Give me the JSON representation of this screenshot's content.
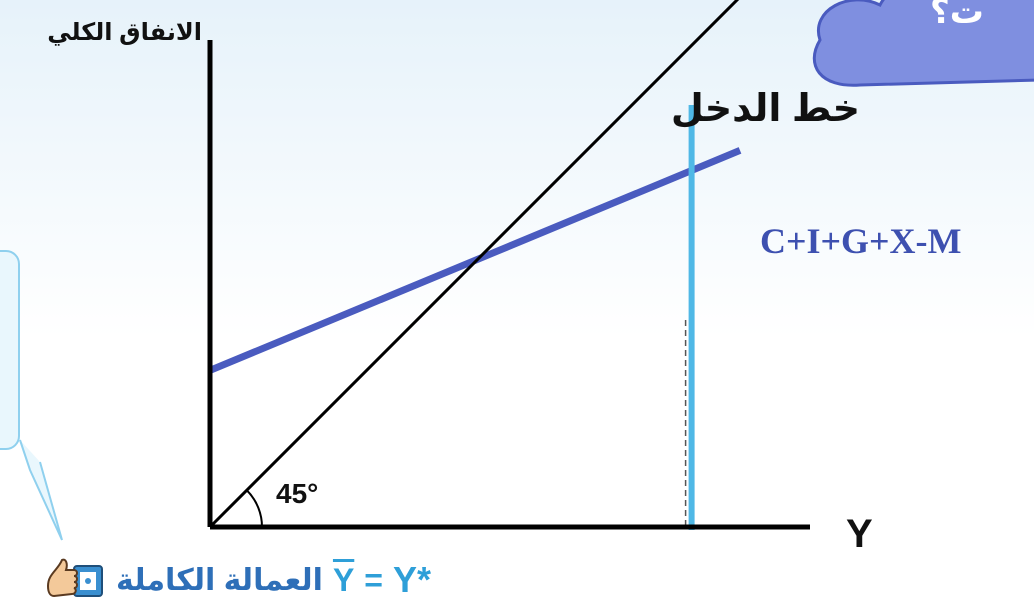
{
  "labels": {
    "y_axis": "الانفاق الكلي",
    "x_axis": "Y",
    "income_line": "خط الدخل",
    "aggregate_expenditure": "C+I+G+X-M",
    "angle": "45°",
    "cloud_text": "ت؟",
    "full_employment": "العمالة الكاملة",
    "y_bar": "Y",
    "equals": "=",
    "y_star": "Y*"
  },
  "colors": {
    "axes": "#000000",
    "income_line": "#000000",
    "aggregate_expenditure": "#4a5bbf",
    "full_employment_line": "#4fb8e6",
    "cloud": "#7f8fe0",
    "caption": "#2e9fd8"
  },
  "chart_data": {
    "type": "line",
    "xlabel": "Y",
    "ylabel": "الانفاق الكلي",
    "series": [
      {
        "name": "خط الدخل",
        "kind": "45-degree line",
        "x": [
          0,
          10
        ],
        "y": [
          0,
          10
        ]
      },
      {
        "name": "C+I+G+X-M",
        "kind": "aggregate expenditure",
        "x": [
          0,
          10
        ],
        "y": [
          2.7,
          6.7
        ]
      }
    ],
    "vertical_line": {
      "label": "Y*",
      "x": 5.2
    },
    "annotations": [
      "45°",
      "العمالة الكاملة Y = Y*"
    ]
  }
}
